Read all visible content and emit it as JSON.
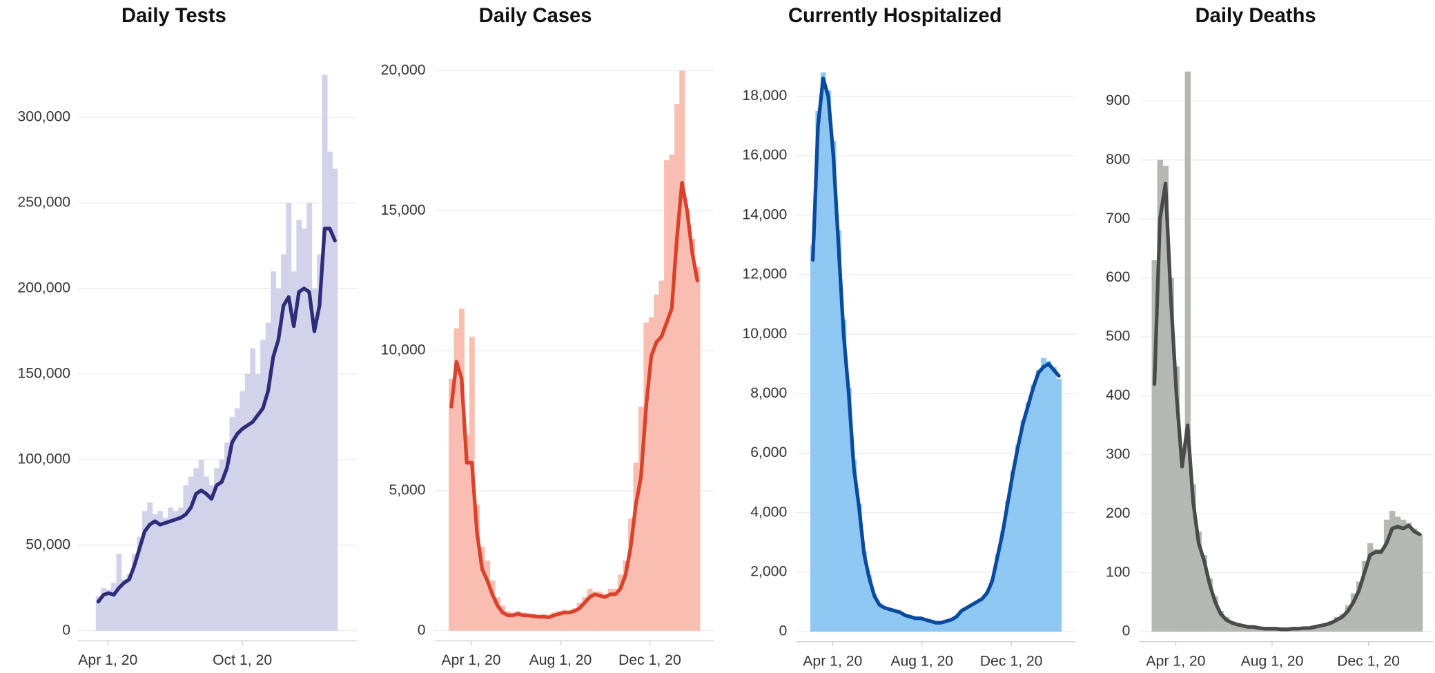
{
  "chart_data": [
    {
      "type": "combo",
      "title": "Daily Tests",
      "x": [
        "2020-03-05",
        "2020-03-12",
        "2020-03-19",
        "2020-03-26",
        "2020-04-02",
        "2020-04-09",
        "2020-04-16",
        "2020-04-23",
        "2020-04-30",
        "2020-05-07",
        "2020-05-14",
        "2020-05-21",
        "2020-05-28",
        "2020-06-04",
        "2020-06-11",
        "2020-06-18",
        "2020-06-25",
        "2020-07-02",
        "2020-07-09",
        "2020-07-16",
        "2020-07-23",
        "2020-07-30",
        "2020-08-06",
        "2020-08-13",
        "2020-08-20",
        "2020-08-27",
        "2020-09-03",
        "2020-09-10",
        "2020-09-17",
        "2020-09-24",
        "2020-10-01",
        "2020-10-08",
        "2020-10-15",
        "2020-10-22",
        "2020-10-29",
        "2020-11-05",
        "2020-11-12",
        "2020-11-19",
        "2020-11-26",
        "2020-12-03",
        "2020-12-10",
        "2020-12-17",
        "2020-12-24",
        "2020-12-31",
        "2021-01-07",
        "2021-01-14",
        "2021-01-21",
        "2021-01-28",
        "2021-02-04"
      ],
      "series": [
        {
          "type": "bar",
          "color": "#d2d2ea",
          "values": [
            null,
            null,
            20000,
            25000,
            24000,
            28000,
            45000,
            30000,
            33000,
            45000,
            55000,
            70000,
            75000,
            68000,
            70000,
            66000,
            72000,
            70000,
            72000,
            85000,
            90000,
            95000,
            100000,
            90000,
            85000,
            95000,
            100000,
            110000,
            125000,
            130000,
            140000,
            150000,
            165000,
            150000,
            170000,
            180000,
            210000,
            200000,
            220000,
            250000,
            210000,
            240000,
            235000,
            250000,
            200000,
            220000,
            325000,
            280000,
            270000
          ]
        },
        {
          "type": "line",
          "color": "#2e2d7a",
          "values": [
            null,
            null,
            17000,
            21000,
            22000,
            21000,
            25000,
            28000,
            30000,
            38000,
            48000,
            58000,
            62000,
            64000,
            62000,
            63000,
            64000,
            65000,
            66000,
            68000,
            72000,
            80000,
            82000,
            80000,
            77000,
            85000,
            87000,
            95000,
            110000,
            115000,
            118000,
            120000,
            122000,
            126000,
            130000,
            140000,
            160000,
            170000,
            190000,
            195000,
            178000,
            198000,
            200000,
            198000,
            175000,
            190000,
            235000,
            235000,
            228000
          ]
        }
      ],
      "xlim": [
        "2020-03-01",
        "2021-02-14"
      ],
      "xticks": [
        {
          "value": "2020-04-01",
          "label": "Apr 1, 20"
        },
        {
          "value": "2020-10-01",
          "label": "Oct 1, 20"
        }
      ],
      "ylim": [
        0,
        330000
      ],
      "yticks": [
        0,
        {
          "value": 50000,
          "label": "50,000"
        },
        {
          "value": 100000,
          "label": "100,000"
        },
        {
          "value": 150000,
          "label": "150,000"
        },
        {
          "value": 200000,
          "label": "200,000"
        },
        {
          "value": 250000,
          "label": "250,000"
        },
        {
          "value": 300000,
          "label": "300,000"
        }
      ],
      "grid": true
    },
    {
      "type": "combo",
      "title": "Daily Cases",
      "x": [
        "2020-03-05",
        "2020-03-12",
        "2020-03-19",
        "2020-03-26",
        "2020-04-02",
        "2020-04-09",
        "2020-04-16",
        "2020-04-23",
        "2020-04-30",
        "2020-05-07",
        "2020-05-14",
        "2020-05-21",
        "2020-05-28",
        "2020-06-04",
        "2020-06-11",
        "2020-06-18",
        "2020-06-25",
        "2020-07-02",
        "2020-07-09",
        "2020-07-16",
        "2020-07-23",
        "2020-07-30",
        "2020-08-06",
        "2020-08-13",
        "2020-08-20",
        "2020-08-27",
        "2020-09-03",
        "2020-09-10",
        "2020-09-17",
        "2020-09-24",
        "2020-10-01",
        "2020-10-08",
        "2020-10-15",
        "2020-10-22",
        "2020-10-29",
        "2020-11-05",
        "2020-11-12",
        "2020-11-19",
        "2020-11-26",
        "2020-12-03",
        "2020-12-10",
        "2020-12-17",
        "2020-12-24",
        "2020-12-31",
        "2021-01-07",
        "2021-01-14",
        "2021-01-21",
        "2021-01-28",
        "2021-02-04"
      ],
      "series": [
        {
          "type": "bar",
          "color": "#f9bdb1",
          "values": [
            9000,
            10800,
            11500,
            7000,
            10500,
            4500,
            3000,
            2500,
            1800,
            1200,
            900,
            700,
            650,
            700,
            650,
            600,
            600,
            550,
            600,
            550,
            650,
            700,
            750,
            700,
            800,
            1000,
            1200,
            1500,
            1400,
            1400,
            1300,
            1500,
            1500,
            2000,
            2500,
            4000,
            6000,
            8000,
            11000,
            11200,
            12000,
            12500,
            16800,
            17000,
            18800,
            20000,
            15000,
            14000,
            13000
          ]
        },
        {
          "type": "line",
          "color": "#d9432c",
          "values": [
            8000,
            9600,
            9000,
            6000,
            6000,
            3500,
            2200,
            1800,
            1300,
            900,
            650,
            550,
            550,
            600,
            550,
            550,
            520,
            500,
            500,
            480,
            550,
            600,
            650,
            650,
            700,
            800,
            1000,
            1200,
            1300,
            1250,
            1200,
            1300,
            1300,
            1500,
            2000,
            3000,
            4500,
            5500,
            8000,
            9800,
            10300,
            10500,
            11000,
            11500,
            14000,
            16000,
            15000,
            13500,
            12500
          ]
        }
      ],
      "xlim": [
        "2020-03-01",
        "2021-02-14"
      ],
      "xticks": [
        {
          "value": "2020-04-01",
          "label": "Apr 1, 20"
        },
        {
          "value": "2020-08-01",
          "label": "Aug 1, 20"
        },
        {
          "value": "2020-12-01",
          "label": "Dec 1, 20"
        }
      ],
      "ylim": [
        0,
        20000
      ],
      "yticks": [
        0,
        {
          "value": 5000,
          "label": "5,000"
        },
        {
          "value": 10000,
          "label": "10,000"
        },
        {
          "value": 15000,
          "label": "15,000"
        },
        {
          "value": 20000,
          "label": "20,000"
        }
      ],
      "grid": true
    },
    {
      "type": "combo",
      "title": "Currently Hospitalized",
      "x": [
        "2020-03-05",
        "2020-03-12",
        "2020-03-19",
        "2020-03-26",
        "2020-04-02",
        "2020-04-09",
        "2020-04-16",
        "2020-04-23",
        "2020-04-30",
        "2020-05-07",
        "2020-05-14",
        "2020-05-21",
        "2020-05-28",
        "2020-06-04",
        "2020-06-11",
        "2020-06-18",
        "2020-06-25",
        "2020-07-02",
        "2020-07-09",
        "2020-07-16",
        "2020-07-23",
        "2020-07-30",
        "2020-08-06",
        "2020-08-13",
        "2020-08-20",
        "2020-08-27",
        "2020-09-03",
        "2020-09-10",
        "2020-09-17",
        "2020-09-24",
        "2020-10-01",
        "2020-10-08",
        "2020-10-15",
        "2020-10-22",
        "2020-10-29",
        "2020-11-05",
        "2020-11-12",
        "2020-11-19",
        "2020-11-26",
        "2020-12-03",
        "2020-12-10",
        "2020-12-17",
        "2020-12-24",
        "2020-12-31",
        "2021-01-07",
        "2021-01-14",
        "2021-01-21",
        "2021-01-28",
        "2021-02-04"
      ],
      "series": [
        {
          "type": "bar",
          "color": "#8ec8f2",
          "values": [
            13000,
            17500,
            18800,
            18200,
            16500,
            13500,
            10500,
            8200,
            5800,
            4300,
            2700,
            1900,
            1250,
            950,
            820,
            780,
            720,
            660,
            560,
            510,
            460,
            460,
            410,
            360,
            310,
            310,
            360,
            420,
            520,
            720,
            820,
            920,
            1020,
            1120,
            1350,
            1750,
            2600,
            3400,
            4400,
            5400,
            6300,
            7100,
            7700,
            8300,
            8800,
            9200,
            9100,
            8900,
            8500
          ]
        },
        {
          "type": "line",
          "color": "#0b4a9c",
          "values": [
            12500,
            17000,
            18600,
            18000,
            16000,
            13000,
            10000,
            8000,
            5500,
            4200,
            2600,
            1800,
            1200,
            900,
            800,
            750,
            700,
            650,
            550,
            500,
            450,
            450,
            400,
            350,
            300,
            300,
            350,
            400,
            500,
            700,
            800,
            900,
            1000,
            1100,
            1300,
            1700,
            2500,
            3300,
            4300,
            5300,
            6200,
            7000,
            7600,
            8200,
            8700,
            8900,
            9000,
            8800,
            8600
          ]
        }
      ],
      "xlim": [
        "2020-03-01",
        "2021-02-14"
      ],
      "xticks": [
        {
          "value": "2020-04-01",
          "label": "Apr 1, 20"
        },
        {
          "value": "2020-08-01",
          "label": "Aug 1, 20"
        },
        {
          "value": "2020-12-01",
          "label": "Dec 1, 20"
        }
      ],
      "ylim": [
        0,
        18800
      ],
      "yticks": [
        0,
        {
          "value": 2000,
          "label": "2,000"
        },
        {
          "value": 4000,
          "label": "4,000"
        },
        {
          "value": 6000,
          "label": "6,000"
        },
        {
          "value": 8000,
          "label": "8,000"
        },
        {
          "value": 10000,
          "label": "10,000"
        },
        {
          "value": 12000,
          "label": "12,000"
        },
        {
          "value": 14000,
          "label": "14,000"
        },
        {
          "value": 16000,
          "label": "16,000"
        },
        {
          "value": 18000,
          "label": "18,000"
        }
      ],
      "grid": true
    },
    {
      "type": "combo",
      "title": "Daily Deaths",
      "x": [
        "2020-03-05",
        "2020-03-12",
        "2020-03-19",
        "2020-03-26",
        "2020-04-02",
        "2020-04-09",
        "2020-04-16",
        "2020-04-23",
        "2020-04-30",
        "2020-05-07",
        "2020-05-14",
        "2020-05-21",
        "2020-05-28",
        "2020-06-04",
        "2020-06-11",
        "2020-06-18",
        "2020-06-25",
        "2020-07-02",
        "2020-07-09",
        "2020-07-16",
        "2020-07-23",
        "2020-07-30",
        "2020-08-06",
        "2020-08-13",
        "2020-08-20",
        "2020-08-27",
        "2020-09-03",
        "2020-09-10",
        "2020-09-17",
        "2020-09-24",
        "2020-10-01",
        "2020-10-08",
        "2020-10-15",
        "2020-10-22",
        "2020-10-29",
        "2020-11-05",
        "2020-11-12",
        "2020-11-19",
        "2020-11-26",
        "2020-12-03",
        "2020-12-10",
        "2020-12-17",
        "2020-12-24",
        "2020-12-31",
        "2021-01-07",
        "2021-01-14",
        "2021-01-21",
        "2021-01-28",
        "2021-02-04"
      ],
      "series": [
        {
          "type": "bar",
          "color": "#b3b8b5",
          "values": [
            630,
            800,
            790,
            600,
            450,
            300,
            950,
            250,
            170,
            130,
            90,
            60,
            35,
            25,
            18,
            15,
            12,
            10,
            10,
            8,
            7,
            6,
            6,
            5,
            5,
            6,
            7,
            8,
            8,
            10,
            12,
            15,
            18,
            25,
            30,
            45,
            65,
            85,
            120,
            150,
            140,
            140,
            190,
            205,
            195,
            190,
            185,
            175,
            165
          ]
        },
        {
          "type": "line",
          "color": "#4b4b4b",
          "values": [
            420,
            700,
            760,
            560,
            400,
            280,
            350,
            220,
            150,
            120,
            80,
            50,
            30,
            20,
            15,
            12,
            10,
            8,
            8,
            6,
            5,
            5,
            5,
            4,
            4,
            5,
            5,
            6,
            6,
            8,
            10,
            12,
            15,
            20,
            25,
            35,
            50,
            70,
            100,
            130,
            135,
            135,
            150,
            175,
            178,
            175,
            180,
            170,
            165
          ]
        }
      ],
      "xlim": [
        "2020-03-01",
        "2021-02-14"
      ],
      "xticks": [
        {
          "value": "2020-04-01",
          "label": "Apr 1, 20"
        },
        {
          "value": "2020-08-01",
          "label": "Aug 1, 20"
        },
        {
          "value": "2020-12-01",
          "label": "Dec 1, 20"
        }
      ],
      "ylim": [
        0,
        950
      ],
      "yticks": [
        0,
        100,
        200,
        300,
        400,
        500,
        600,
        700,
        800,
        900
      ],
      "grid": true
    }
  ]
}
